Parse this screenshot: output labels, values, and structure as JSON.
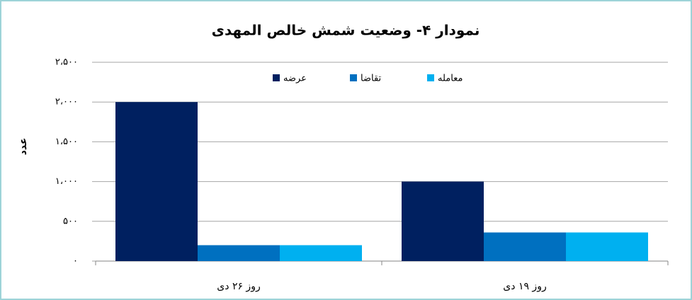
{
  "chart_data": {
    "type": "bar",
    "title": "نمودار ۴- وضعیت شمش خالص المهدی",
    "y_label": "عدد",
    "categories": [
      "روز ۲۶ دی",
      "روز ۱۹ دی"
    ],
    "series": [
      {
        "name": "عرضه",
        "color": "#002060",
        "values": [
          2000,
          1000
        ]
      },
      {
        "name": "تقاضا",
        "color": "#0070c0",
        "values": [
          200,
          360
        ]
      },
      {
        "name": "معامله",
        "color": "#00b0f0",
        "values": [
          200,
          360
        ]
      }
    ],
    "ylim": [
      0,
      2500
    ],
    "yticks": [
      {
        "value": 0,
        "label": "۰"
      },
      {
        "value": 500,
        "label": "۵۰۰"
      },
      {
        "value": 1000,
        "label": "۱،۰۰۰"
      },
      {
        "value": 1500,
        "label": "۱،۵۰۰"
      },
      {
        "value": 2000,
        "label": "۲،۰۰۰"
      },
      {
        "value": 2500,
        "label": "۲،۵۰۰"
      }
    ],
    "grid": true
  }
}
